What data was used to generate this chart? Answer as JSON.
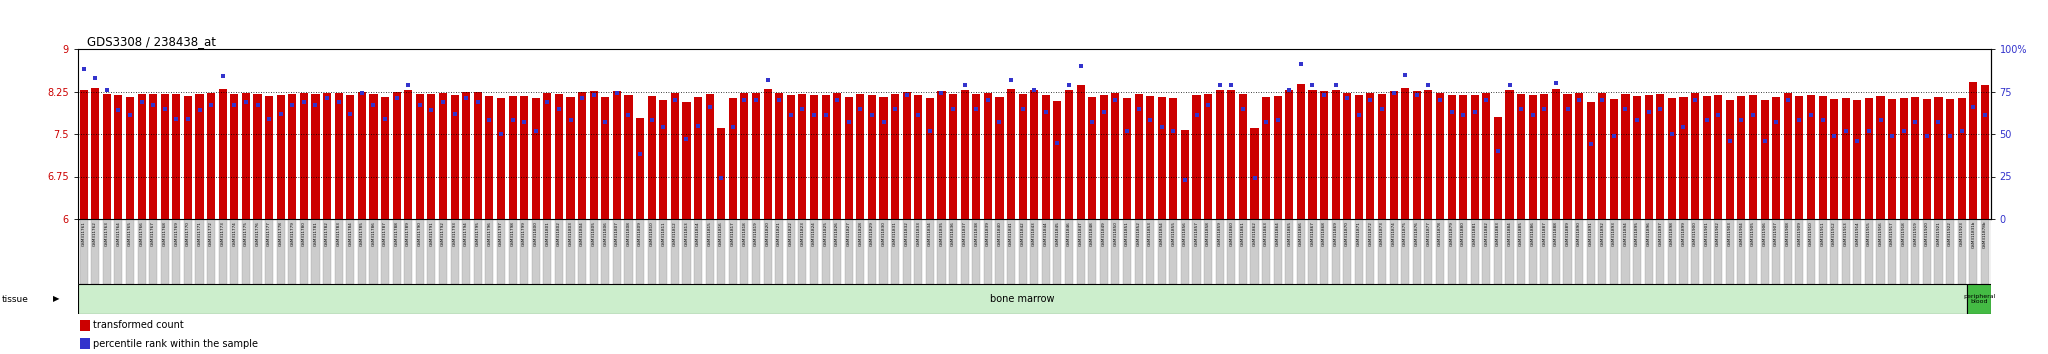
{
  "title": "GDS3308 / 238438_at",
  "ylim_left": [
    6.0,
    9.0
  ],
  "ylim_right": [
    0,
    100
  ],
  "yticks_left": [
    6.0,
    6.75,
    7.5,
    8.25,
    9.0
  ],
  "yticks_right": [
    0,
    25,
    50,
    75,
    100
  ],
  "ytick_labels_left": [
    "6",
    "6.75",
    "7.5",
    "8.25",
    "9"
  ],
  "ytick_labels_right": [
    "0",
    "25",
    "50",
    "75",
    "100%"
  ],
  "bar_color": "#cc0000",
  "dot_color": "#3333cc",
  "bg_color": "#ffffff",
  "tissue_bm_color": "#cceecc",
  "tissue_pb_color": "#44bb44",
  "legend_bar_label": "transformed count",
  "legend_dot_label": "percentile rank within the sample",
  "samples": [
    "GSM311761",
    "GSM311762",
    "GSM311763",
    "GSM311764",
    "GSM311765",
    "GSM311766",
    "GSM311767",
    "GSM311768",
    "GSM311769",
    "GSM311770",
    "GSM311771",
    "GSM311772",
    "GSM311773",
    "GSM311774",
    "GSM311775",
    "GSM311776",
    "GSM311777",
    "GSM311778",
    "GSM311779",
    "GSM311780",
    "GSM311781",
    "GSM311782",
    "GSM311783",
    "GSM311784",
    "GSM311785",
    "GSM311786",
    "GSM311787",
    "GSM311788",
    "GSM311789",
    "GSM311790",
    "GSM311791",
    "GSM311792",
    "GSM311793",
    "GSM311794",
    "GSM311795",
    "GSM311796",
    "GSM311797",
    "GSM311798",
    "GSM311799",
    "GSM311800",
    "GSM311801",
    "GSM311802",
    "GSM311803",
    "GSM311804",
    "GSM311805",
    "GSM311806",
    "GSM311807",
    "GSM311808",
    "GSM311809",
    "GSM311810",
    "GSM311811",
    "GSM311812",
    "GSM311813",
    "GSM311814",
    "GSM311815",
    "GSM311816",
    "GSM311817",
    "GSM311818",
    "GSM311819",
    "GSM311820",
    "GSM311821",
    "GSM311822",
    "GSM311823",
    "GSM311824",
    "GSM311825",
    "GSM311826",
    "GSM311827",
    "GSM311828",
    "GSM311829",
    "GSM311830",
    "GSM311831",
    "GSM311832",
    "GSM311833",
    "GSM311834",
    "GSM311835",
    "GSM311836",
    "GSM311837",
    "GSM311838",
    "GSM311839",
    "GSM311840",
    "GSM311841",
    "GSM311842",
    "GSM311843",
    "GSM311844",
    "GSM311845",
    "GSM311846",
    "GSM311847",
    "GSM311848",
    "GSM311849",
    "GSM311850",
    "GSM311851",
    "GSM311852",
    "GSM311853",
    "GSM311854",
    "GSM311855",
    "GSM311856",
    "GSM311857",
    "GSM311858",
    "GSM311859",
    "GSM311860",
    "GSM311861",
    "GSM311862",
    "GSM311863",
    "GSM311864",
    "GSM311865",
    "GSM311866",
    "GSM311867",
    "GSM311868",
    "GSM311869",
    "GSM311870",
    "GSM311871",
    "GSM311872",
    "GSM311873",
    "GSM311874",
    "GSM311875",
    "GSM311876",
    "GSM311877",
    "GSM311878",
    "GSM311879",
    "GSM311880",
    "GSM311881",
    "GSM311882",
    "GSM311883",
    "GSM311884",
    "GSM311885",
    "GSM311886",
    "GSM311887",
    "GSM311888",
    "GSM311889",
    "GSM311890",
    "GSM311891",
    "GSM311892",
    "GSM311893",
    "GSM311894",
    "GSM311895",
    "GSM311896",
    "GSM311897",
    "GSM311898",
    "GSM311899",
    "GSM311900",
    "GSM311901",
    "GSM311902",
    "GSM311903",
    "GSM311904",
    "GSM311905",
    "GSM311906",
    "GSM311907",
    "GSM311908",
    "GSM311909",
    "GSM311910",
    "GSM311911",
    "GSM311912",
    "GSM311913",
    "GSM311914",
    "GSM311915",
    "GSM311916",
    "GSM311917",
    "GSM311918",
    "GSM311919",
    "GSM311920",
    "GSM311921",
    "GSM311922",
    "GSM311923",
    "GSM311831b",
    "GSM311878b"
  ],
  "bar_values": [
    8.27,
    8.32,
    8.21,
    8.18,
    8.16,
    8.2,
    8.21,
    8.21,
    8.21,
    8.17,
    8.2,
    8.22,
    8.3,
    8.21,
    8.22,
    8.21,
    8.17,
    8.19,
    8.21,
    8.22,
    8.21,
    8.23,
    8.22,
    8.19,
    8.25,
    8.2,
    8.16,
    8.24,
    8.28,
    8.21,
    8.2,
    8.22,
    8.18,
    8.25,
    8.24,
    8.17,
    8.13,
    8.17,
    8.17,
    8.14,
    8.22,
    8.2,
    8.16,
    8.24,
    8.26,
    8.16,
    8.26,
    8.18,
    7.78,
    8.17,
    8.1,
    8.22,
    8.07,
    8.15,
    8.2,
    7.6,
    8.14,
    8.22,
    8.22,
    8.3,
    8.22,
    8.18,
    8.2,
    8.18,
    8.18,
    8.22,
    8.16,
    8.2,
    8.18,
    8.16,
    8.2,
    8.25,
    8.18,
    8.14,
    8.26,
    8.2,
    8.28,
    8.2,
    8.22,
    8.16,
    8.3,
    8.2,
    8.27,
    8.19,
    8.08,
    8.28,
    8.37,
    8.16,
    8.19,
    8.22,
    8.14,
    8.2,
    8.17,
    8.15,
    8.14,
    7.57,
    8.18,
    8.21,
    8.28,
    8.28,
    8.2,
    7.6,
    8.16,
    8.17,
    8.27,
    8.38,
    8.28,
    8.26,
    8.28,
    8.23,
    8.18,
    8.22,
    8.2,
    8.26,
    8.32,
    8.26,
    8.28,
    8.22,
    8.19,
    8.18,
    8.19,
    8.22,
    7.8,
    8.28,
    8.2,
    8.18,
    8.2,
    8.29,
    8.2,
    8.22,
    8.06,
    8.22,
    8.12,
    8.2,
    8.17,
    8.19,
    8.2,
    8.13,
    8.15,
    8.22,
    8.17,
    8.18,
    8.1,
    8.17,
    8.18,
    8.1,
    8.16,
    8.22,
    8.17,
    8.18,
    8.17,
    8.12,
    8.14,
    8.1,
    8.14,
    8.17,
    8.12,
    8.14,
    8.16,
    8.12,
    8.16,
    8.12,
    8.14,
    8.42,
    8.36
  ],
  "dot_values_pct": [
    88,
    83,
    76,
    64,
    61,
    69,
    67,
    65,
    59,
    59,
    64,
    67,
    84,
    67,
    69,
    67,
    59,
    62,
    67,
    69,
    67,
    71,
    69,
    62,
    74,
    67,
    59,
    71,
    79,
    67,
    64,
    69,
    62,
    71,
    69,
    58,
    50,
    58,
    57,
    52,
    69,
    65,
    58,
    71,
    73,
    57,
    74,
    61,
    38,
    58,
    54,
    70,
    47,
    55,
    66,
    24,
    54,
    70,
    70,
    82,
    70,
    61,
    65,
    61,
    61,
    70,
    57,
    65,
    61,
    57,
    65,
    73,
    61,
    52,
    74,
    65,
    79,
    65,
    70,
    57,
    82,
    65,
    76,
    63,
    45,
    79,
    90,
    57,
    63,
    70,
    52,
    65,
    58,
    54,
    52,
    23,
    61,
    67,
    79,
    79,
    65,
    24,
    57,
    58,
    76,
    91,
    79,
    73,
    79,
    71,
    61,
    70,
    65,
    74,
    85,
    73,
    79,
    70,
    63,
    61,
    63,
    70,
    40,
    79,
    65,
    61,
    65,
    80,
    65,
    70,
    44,
    70,
    49,
    65,
    58,
    63,
    65,
    50,
    54,
    70,
    58,
    61,
    46,
    58,
    61,
    46,
    57,
    70,
    58,
    61,
    58,
    49,
    52,
    46,
    52,
    58,
    49,
    52,
    57,
    49,
    57,
    49,
    52,
    66,
    61
  ],
  "n_total": 165,
  "n_bone_marrow": 163,
  "ybase": 6.0
}
